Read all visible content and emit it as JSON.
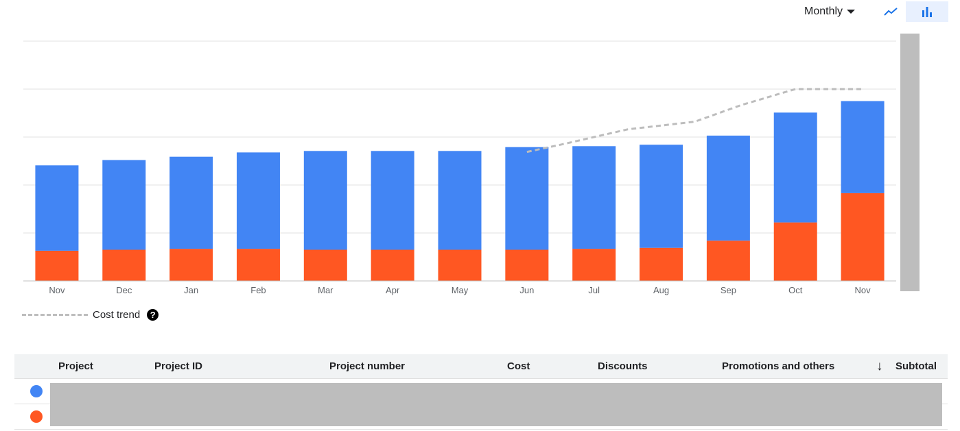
{
  "toolbar": {
    "period_label": "Monthly",
    "icons": [
      "line-chart-icon",
      "bar-chart-icon"
    ],
    "active_view": "bar"
  },
  "chart_data": {
    "type": "bar",
    "stacked": true,
    "categories": [
      "Nov",
      "Dec",
      "Jan",
      "Feb",
      "Mar",
      "Apr",
      "May",
      "Jun",
      "Jul",
      "Aug",
      "Sep",
      "Oct",
      "Nov"
    ],
    "series": [
      {
        "color": "#ff5722",
        "values": [
          0.63,
          0.65,
          0.67,
          0.67,
          0.65,
          0.65,
          0.65,
          0.65,
          0.67,
          0.69,
          0.84,
          1.22,
          1.83
        ]
      },
      {
        "color": "#4285f4",
        "values": [
          1.78,
          1.87,
          1.92,
          2.01,
          2.06,
          2.06,
          2.06,
          2.14,
          2.14,
          2.15,
          2.19,
          2.29,
          1.92
        ]
      }
    ],
    "trend": {
      "name": "Cost trend",
      "style": "dashed",
      "color": "#bdbdbd",
      "x": [
        7.5,
        8,
        9,
        10,
        10.7,
        11.5,
        12.5
      ],
      "y": [
        2.69,
        2.84,
        3.16,
        3.32,
        3.67,
        4.0,
        4.0
      ]
    },
    "ylim": [
      0,
      5
    ],
    "grid": true,
    "legend": "bottom-left"
  },
  "legend": {
    "trend_label": "Cost trend",
    "help_glyph": "?"
  },
  "table": {
    "sort_arrow": "↓",
    "columns": [
      "Project",
      "Project ID",
      "Project number",
      "Cost",
      "Discounts",
      "Promotions and others",
      "Subtotal"
    ],
    "rows": [
      {
        "color": "#4285f4"
      },
      {
        "color": "#ff5722"
      }
    ]
  }
}
